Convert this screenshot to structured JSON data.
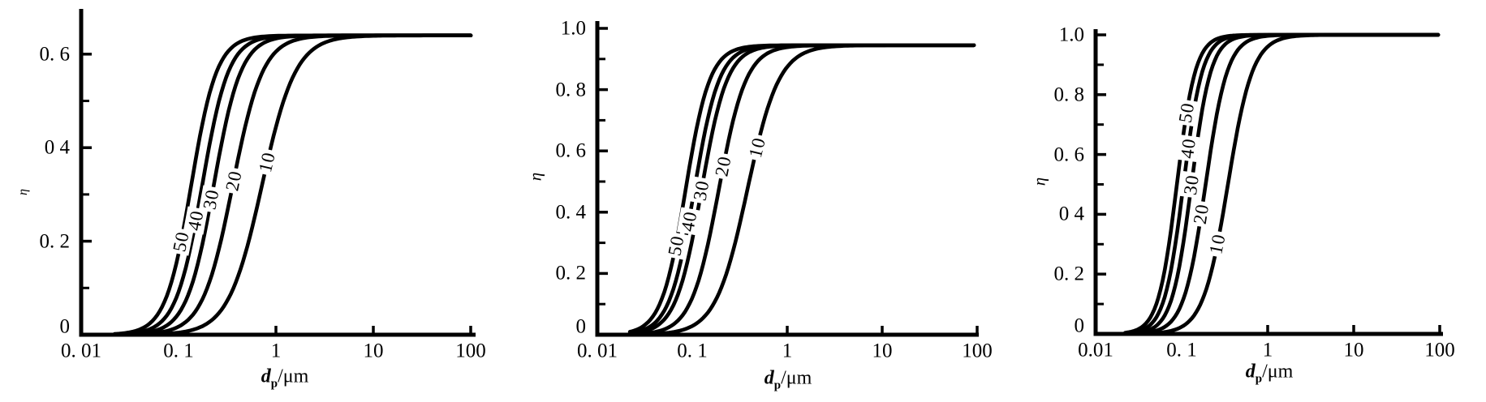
{
  "figure": {
    "background": "#ffffff",
    "ink_color": "#000000",
    "panel_count": 3
  },
  "chart_data": [
    {
      "panel_id": "left",
      "type": "line",
      "x_axis": {
        "label_display": "dp/μm",
        "label_d": "d",
        "label_sub": "p",
        "label_unit": "/μm",
        "scale": "log",
        "range": [
          0.01,
          100
        ],
        "tick_values": [
          0.01,
          0.1,
          1,
          10,
          100
        ],
        "tick_labels": [
          "0. 01",
          "0. 1",
          "1",
          "10",
          "100"
        ]
      },
      "y_axis": {
        "label": "η",
        "range": [
          0,
          0.7
        ],
        "major_ticks": [
          {
            "value": 0,
            "label": "0"
          },
          {
            "value": 0.2,
            "label": "0. 2"
          },
          {
            "value": 0.4,
            "label": "0 4"
          },
          {
            "value": 0.6,
            "label": "0. 6"
          }
        ],
        "minor_tick_values": [
          0.1,
          0.3,
          0.5
        ]
      },
      "eta_max": 0.64,
      "series": [
        {
          "label": "50",
          "d50_um": 0.135,
          "log_slope": 3.3,
          "label_eta": 0.2,
          "x_um": [
            0.05,
            0.1,
            0.2,
            0.5,
            1,
            2,
            5
          ],
          "eta": [
            0.023,
            0.173,
            0.503,
            0.632,
            0.639,
            0.64,
            0.64
          ]
        },
        {
          "label": "40",
          "d50_um": 0.175,
          "log_slope": 3.2,
          "label_eta": 0.245,
          "x_um": [
            0.05,
            0.1,
            0.2,
            0.5,
            1,
            2,
            5
          ],
          "eta": [
            0.011,
            0.092,
            0.387,
            0.619,
            0.638,
            0.64,
            0.64
          ]
        },
        {
          "label": "30",
          "d50_um": 0.23,
          "log_slope": 3.1,
          "label_eta": 0.29,
          "x_um": [
            0.05,
            0.1,
            0.2,
            0.5,
            1,
            2,
            5
          ],
          "eta": [
            0.006,
            0.045,
            0.252,
            0.587,
            0.633,
            0.639,
            0.64
          ]
        },
        {
          "label": "20",
          "d50_um": 0.36,
          "log_slope": 2.8,
          "label_eta": 0.33,
          "x_um": [
            0.05,
            0.1,
            0.2,
            0.5,
            1,
            2,
            5
          ],
          "eta": [
            0.003,
            0.017,
            0.103,
            0.457,
            0.605,
            0.635,
            0.64
          ]
        },
        {
          "label": "10",
          "d50_um": 0.72,
          "log_slope": 2.5,
          "label_eta": 0.37,
          "x_um": [
            0.05,
            0.1,
            0.2,
            0.5,
            1,
            2,
            5
          ],
          "eta": [
            0.001,
            0.005,
            0.025,
            0.183,
            0.445,
            0.594,
            0.635
          ]
        }
      ]
    },
    {
      "panel_id": "middle",
      "type": "line",
      "x_axis": {
        "label_display": "dp/μm",
        "label_d": "d",
        "label_sub": "p",
        "label_unit": "/μm",
        "scale": "log",
        "range": [
          0.01,
          100
        ],
        "tick_values": [
          0.01,
          0.1,
          1,
          10,
          100
        ],
        "tick_labels": [
          "0. 01",
          "0. 1",
          "1",
          "10",
          "100"
        ]
      },
      "y_axis": {
        "label": "η",
        "range": [
          0,
          1.02
        ],
        "major_ticks": [
          {
            "value": 0,
            "label": "0"
          },
          {
            "value": 0.2,
            "label": "0. 2"
          },
          {
            "value": 0.4,
            "label": "0. 4"
          },
          {
            "value": 0.6,
            "label": "0. 6"
          },
          {
            "value": 0.8,
            "label": "0. 8"
          },
          {
            "value": 1.0,
            "label": "1.0"
          }
        ],
        "minor_tick_values": [
          0.1,
          0.3,
          0.5,
          0.7,
          0.9
        ]
      },
      "eta_max": 0.945,
      "series": [
        {
          "label": "50",
          "d50_um": 0.085,
          "log_slope": 3.4,
          "label_eta": 0.29,
          "x_um": [
            0.05,
            0.1,
            0.2,
            0.5,
            1,
            2,
            5
          ],
          "eta": [
            0.134,
            0.6,
            0.896,
            0.943,
            0.945,
            0.945,
            0.945
          ]
        },
        {
          "label": "40",
          "d50_um": 0.105,
          "log_slope": 3.3,
          "label_eta": 0.37,
          "x_um": [
            0.05,
            0.1,
            0.2,
            0.5,
            1,
            2,
            5
          ],
          "eta": [
            0.075,
            0.434,
            0.844,
            0.94,
            0.944,
            0.945,
            0.945
          ]
        },
        {
          "label": "30",
          "d50_um": 0.125,
          "log_slope": 3.2,
          "label_eta": 0.47,
          "x_um": [
            0.05,
            0.1,
            0.2,
            0.5,
            1,
            2,
            5
          ],
          "eta": [
            0.048,
            0.311,
            0.773,
            0.934,
            0.944,
            0.945,
            0.945
          ]
        },
        {
          "label": "20",
          "d50_um": 0.19,
          "log_slope": 3.0,
          "label_eta": 0.55,
          "x_um": [
            0.05,
            0.1,
            0.2,
            0.5,
            1,
            2,
            5
          ],
          "eta": [
            0.017,
            0.12,
            0.509,
            0.896,
            0.939,
            0.944,
            0.945
          ]
        },
        {
          "label": "10",
          "d50_um": 0.38,
          "log_slope": 2.6,
          "label_eta": 0.61,
          "x_um": [
            0.05,
            0.1,
            0.2,
            0.5,
            1,
            2,
            5
          ],
          "eta": [
            0.005,
            0.028,
            0.15,
            0.634,
            0.874,
            0.933,
            0.944
          ]
        }
      ]
    },
    {
      "panel_id": "right",
      "type": "line",
      "x_axis": {
        "label_display": "dp/μm",
        "label_d": "d",
        "label_sub": "p",
        "label_unit": "/μm",
        "scale": "log",
        "range": [
          0.01,
          100
        ],
        "tick_values": [
          0.01,
          0.1,
          1,
          10,
          100
        ],
        "tick_labels": [
          "0.01",
          "0. 1",
          "1",
          "10",
          "100"
        ]
      },
      "y_axis": {
        "label": "η",
        "range": [
          0,
          1.02
        ],
        "major_ticks": [
          {
            "value": 0,
            "label": "0"
          },
          {
            "value": 0.2,
            "label": "0. 2"
          },
          {
            "value": 0.4,
            "label": "0 4"
          },
          {
            "value": 0.6,
            "label": "0. 6"
          },
          {
            "value": 0.8,
            "label": "0. 8"
          },
          {
            "value": 1.0,
            "label": "1.0"
          }
        ],
        "minor_tick_values": [
          0.1,
          0.3,
          0.5,
          0.7,
          0.9
        ]
      },
      "eta_max": 1.0,
      "series": [
        {
          "label": "50",
          "d50_um": 0.088,
          "log_slope": 4.0,
          "label_eta": 0.74,
          "x_um": [
            0.05,
            0.1,
            0.2,
            0.5,
            1,
            2,
            5
          ],
          "eta": [
            0.094,
            0.625,
            0.964,
            0.999,
            1.0,
            1.0,
            1.0
          ]
        },
        {
          "label": "40",
          "d50_um": 0.105,
          "log_slope": 3.9,
          "label_eta": 0.62,
          "x_um": [
            0.05,
            0.1,
            0.2,
            0.5,
            1,
            2,
            5
          ],
          "eta": [
            0.052,
            0.452,
            0.925,
            0.998,
            1.0,
            1.0,
            1.0
          ]
        },
        {
          "label": "30",
          "d50_um": 0.13,
          "log_slope": 3.8,
          "label_eta": 0.5,
          "x_um": [
            0.05,
            0.1,
            0.2,
            0.5,
            1,
            2,
            5
          ],
          "eta": [
            0.026,
            0.27,
            0.837,
            0.994,
            0.999,
            1.0,
            1.0
          ]
        },
        {
          "label": "20",
          "d50_um": 0.19,
          "log_slope": 3.4,
          "label_eta": 0.4,
          "x_um": [
            0.05,
            0.1,
            0.2,
            0.5,
            1,
            2,
            5
          ],
          "eta": [
            0.011,
            0.101,
            0.543,
            0.964,
            0.996,
            1.0,
            1.0
          ]
        },
        {
          "label": "10",
          "d50_um": 0.345,
          "log_slope": 3.0,
          "label_eta": 0.3,
          "x_um": [
            0.05,
            0.1,
            0.2,
            0.5,
            1,
            2,
            5
          ],
          "eta": [
            0.003,
            0.024,
            0.163,
            0.753,
            0.961,
            0.995,
            1.0
          ]
        }
      ]
    }
  ]
}
